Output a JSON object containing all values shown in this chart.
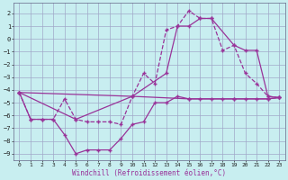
{
  "xlabel": "Windchill (Refroidissement éolien,°C)",
  "bg_color": "#c8eef0",
  "grid_color": "#a0a8c8",
  "line_color": "#993399",
  "xlim": [
    -0.5,
    23.5
  ],
  "ylim": [
    -9.5,
    2.8
  ],
  "yticks": [
    2,
    1,
    0,
    -1,
    -2,
    -3,
    -4,
    -5,
    -6,
    -7,
    -8,
    -9
  ],
  "xticks": [
    0,
    1,
    2,
    3,
    4,
    5,
    6,
    7,
    8,
    9,
    10,
    11,
    12,
    13,
    14,
    15,
    16,
    17,
    18,
    19,
    20,
    21,
    22,
    23
  ],
  "line_dashed_x": [
    0,
    1,
    2,
    3,
    4,
    5,
    6,
    7,
    8,
    9,
    10,
    11,
    12,
    13,
    14,
    15,
    16,
    17,
    18,
    19,
    20,
    21,
    22,
    23
  ],
  "line_dashed_y": [
    -4.2,
    -6.3,
    -6.3,
    -6.3,
    -4.7,
    -6.3,
    -6.5,
    -6.5,
    -6.5,
    -6.7,
    -4.5,
    -2.7,
    -3.5,
    0.7,
    1.0,
    2.2,
    1.6,
    1.6,
    -0.9,
    -0.5,
    -2.7,
    -3.5,
    -4.5,
    -4.6
  ],
  "line_deep_v_x": [
    0,
    1,
    2,
    3,
    4,
    5,
    6,
    7,
    8,
    9,
    10,
    11,
    12,
    13,
    14,
    15,
    16,
    17,
    18,
    19,
    20,
    21,
    22,
    23
  ],
  "line_deep_v_y": [
    -4.2,
    -6.3,
    -6.3,
    -6.3,
    -7.5,
    -9.0,
    -8.7,
    -8.7,
    -8.7,
    -7.8,
    -6.7,
    -6.5,
    -5.0,
    -5.0,
    -4.5,
    -4.7,
    -4.7,
    -4.7,
    -4.7,
    -4.7,
    -4.7,
    -4.7,
    -4.7,
    -4.6
  ],
  "line_smooth1_x": [
    0,
    5,
    10,
    13,
    14,
    15,
    16,
    17,
    19,
    20,
    21,
    22,
    23
  ],
  "line_smooth1_y": [
    -4.2,
    -6.3,
    -4.5,
    -2.7,
    1.0,
    1.0,
    1.6,
    1.6,
    -0.5,
    -0.9,
    -0.9,
    -4.5,
    -4.6
  ],
  "line_smooth2_x": [
    0,
    10,
    15,
    19,
    22,
    23
  ],
  "line_smooth2_y": [
    -4.2,
    -4.5,
    -4.7,
    -4.7,
    -4.7,
    -4.6
  ]
}
